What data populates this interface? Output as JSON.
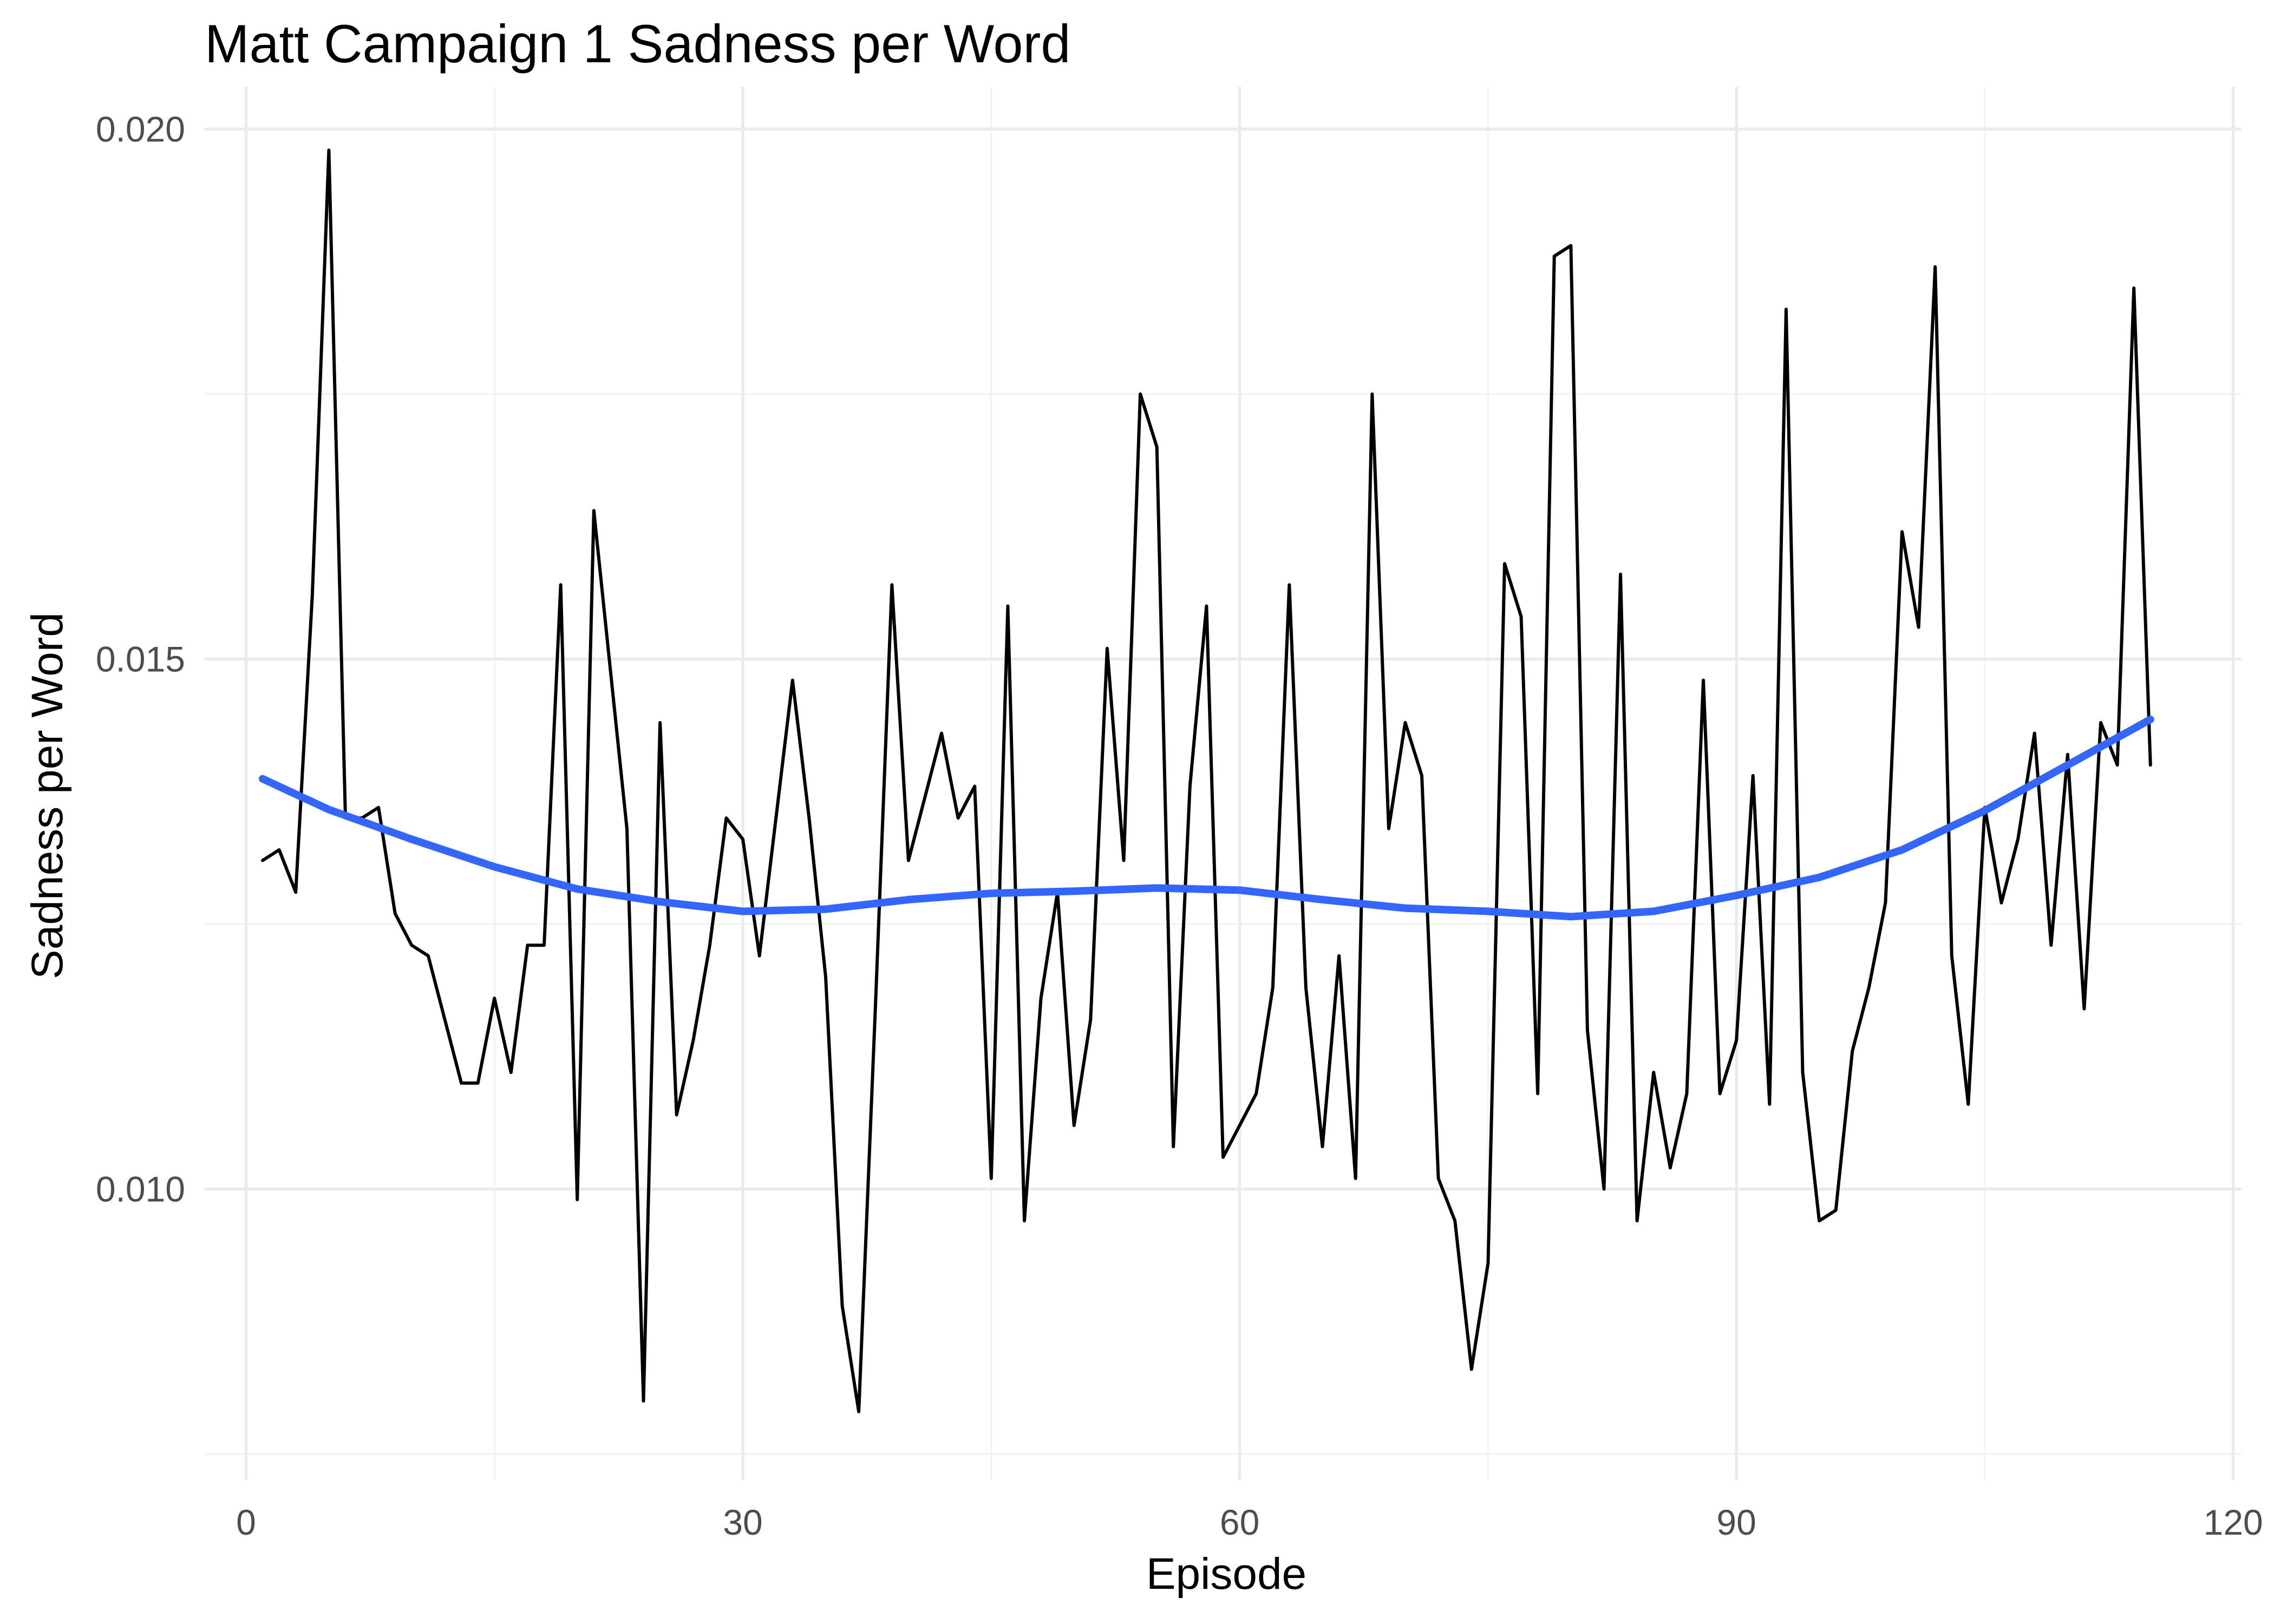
{
  "chart_data": {
    "type": "line",
    "title": "Matt Campaign 1 Sadness per Word",
    "xlabel": "Episode",
    "ylabel": "Sadness per Word",
    "xlim": [
      -2.5,
      120.5
    ],
    "ylim": [
      0.00725,
      0.0204
    ],
    "x_ticks": [
      0,
      30,
      60,
      90,
      120
    ],
    "x_tick_labels": [
      "0",
      "30",
      "60",
      "90",
      "120"
    ],
    "x_minor_ticks": [
      15,
      45,
      75,
      105
    ],
    "y_ticks": [
      0.01,
      0.015,
      0.02
    ],
    "y_tick_labels": [
      "0.010",
      "0.015",
      "0.020"
    ],
    "y_minor_ticks": [
      0.0075,
      0.0125,
      0.0175
    ],
    "grid": true,
    "legend": "none",
    "colors": {
      "series": "#000000",
      "smooth": "#3366ff",
      "grid": "#ebebeb"
    },
    "series": [
      {
        "values": [
          [
            1,
            0.0131
          ],
          [
            2,
            0.0132
          ],
          [
            3,
            0.0128
          ],
          [
            4,
            0.0156
          ],
          [
            5,
            0.0198
          ],
          [
            6,
            0.0135
          ],
          [
            7,
            0.0135
          ],
          [
            8,
            0.0136
          ],
          [
            9,
            0.0126
          ],
          [
            10,
            0.0123
          ],
          [
            11,
            0.0122
          ],
          [
            12,
            0.0116
          ],
          [
            13,
            0.011
          ],
          [
            14,
            0.011
          ],
          [
            15,
            0.0118
          ],
          [
            16,
            0.0111
          ],
          [
            17,
            0.0123
          ],
          [
            18,
            0.0123
          ],
          [
            19,
            0.0157
          ],
          [
            20,
            0.0099
          ],
          [
            21,
            0.0164
          ],
          [
            22,
            0.0149
          ],
          [
            23,
            0.0134
          ],
          [
            24,
            0.008
          ],
          [
            25,
            0.0144
          ],
          [
            26,
            0.0107
          ],
          [
            27,
            0.0114
          ],
          [
            28,
            0.0123
          ],
          [
            29,
            0.0135
          ],
          [
            30,
            0.0133
          ],
          [
            31,
            0.0122
          ],
          [
            32,
            0.0135
          ],
          [
            33,
            0.0148
          ],
          [
            34,
            0.0135
          ],
          [
            35,
            0.012
          ],
          [
            36,
            0.0089
          ],
          [
            37,
            0.0079
          ],
          [
            38,
            0.0117
          ],
          [
            39,
            0.0157
          ],
          [
            40,
            0.0131
          ],
          [
            41,
            0.0137
          ],
          [
            42,
            0.0143
          ],
          [
            43,
            0.0135
          ],
          [
            44,
            0.0138
          ],
          [
            45,
            0.0101
          ],
          [
            46,
            0.0155
          ],
          [
            47,
            0.0097
          ],
          [
            48,
            0.0118
          ],
          [
            49,
            0.0128
          ],
          [
            50,
            0.0106
          ],
          [
            51,
            0.0116
          ],
          [
            52,
            0.0151
          ],
          [
            53,
            0.0131
          ],
          [
            54,
            0.0175
          ],
          [
            55,
            0.017
          ],
          [
            56,
            0.0104
          ],
          [
            57,
            0.0138
          ],
          [
            58,
            0.0155
          ],
          [
            59,
            0.0103
          ],
          [
            60,
            0.0106
          ],
          [
            61,
            0.0109
          ],
          [
            62,
            0.0119
          ],
          [
            63,
            0.0157
          ],
          [
            64,
            0.0119
          ],
          [
            65,
            0.0104
          ],
          [
            66,
            0.0122
          ],
          [
            67,
            0.0101
          ],
          [
            68,
            0.0175
          ],
          [
            69,
            0.0134
          ],
          [
            70,
            0.0144
          ],
          [
            71,
            0.0139
          ],
          [
            72,
            0.0101
          ],
          [
            73,
            0.0097
          ],
          [
            74,
            0.0083
          ],
          [
            75,
            0.0093
          ],
          [
            76,
            0.0159
          ],
          [
            77,
            0.0154
          ],
          [
            78,
            0.0109
          ],
          [
            79,
            0.0188
          ],
          [
            80,
            0.0189
          ],
          [
            81,
            0.0115
          ],
          [
            82,
            0.01
          ],
          [
            83,
            0.0158
          ],
          [
            84,
            0.0097
          ],
          [
            85,
            0.0111
          ],
          [
            86,
            0.0102
          ],
          [
            87,
            0.0109
          ],
          [
            88,
            0.0148
          ],
          [
            89,
            0.0109
          ],
          [
            90,
            0.0114
          ],
          [
            91,
            0.0139
          ],
          [
            92,
            0.0108
          ],
          [
            93,
            0.0183
          ],
          [
            94,
            0.0111
          ],
          [
            95,
            0.0097
          ],
          [
            96,
            0.0098
          ],
          [
            97,
            0.0113
          ],
          [
            98,
            0.0119
          ],
          [
            99,
            0.0127
          ],
          [
            100,
            0.0162
          ],
          [
            101,
            0.0153
          ],
          [
            102,
            0.0187
          ],
          [
            103,
            0.0122
          ],
          [
            104,
            0.0108
          ],
          [
            105,
            0.0136
          ],
          [
            106,
            0.0127
          ],
          [
            107,
            0.0133
          ],
          [
            108,
            0.0143
          ],
          [
            109,
            0.0123
          ],
          [
            110,
            0.0141
          ],
          [
            111,
            0.0117
          ],
          [
            112,
            0.0144
          ],
          [
            113,
            0.014
          ],
          [
            114,
            0.0185
          ],
          [
            115,
            0.014
          ]
        ]
      },
      {
        "values": [
          [
            1,
            0.01387
          ],
          [
            5,
            0.01358
          ],
          [
            10,
            0.0133
          ],
          [
            15,
            0.01304
          ],
          [
            20,
            0.01283
          ],
          [
            25,
            0.01271
          ],
          [
            30,
            0.01262
          ],
          [
            35,
            0.01264
          ],
          [
            40,
            0.01273
          ],
          [
            45,
            0.01279
          ],
          [
            50,
            0.01281
          ],
          [
            55,
            0.01284
          ],
          [
            60,
            0.01282
          ],
          [
            65,
            0.01273
          ],
          [
            70,
            0.01265
          ],
          [
            75,
            0.01262
          ],
          [
            80,
            0.01257
          ],
          [
            85,
            0.01262
          ],
          [
            90,
            0.01277
          ],
          [
            95,
            0.01294
          ],
          [
            100,
            0.0132
          ],
          [
            105,
            0.01357
          ],
          [
            110,
            0.014
          ],
          [
            115,
            0.01443
          ]
        ]
      }
    ]
  }
}
